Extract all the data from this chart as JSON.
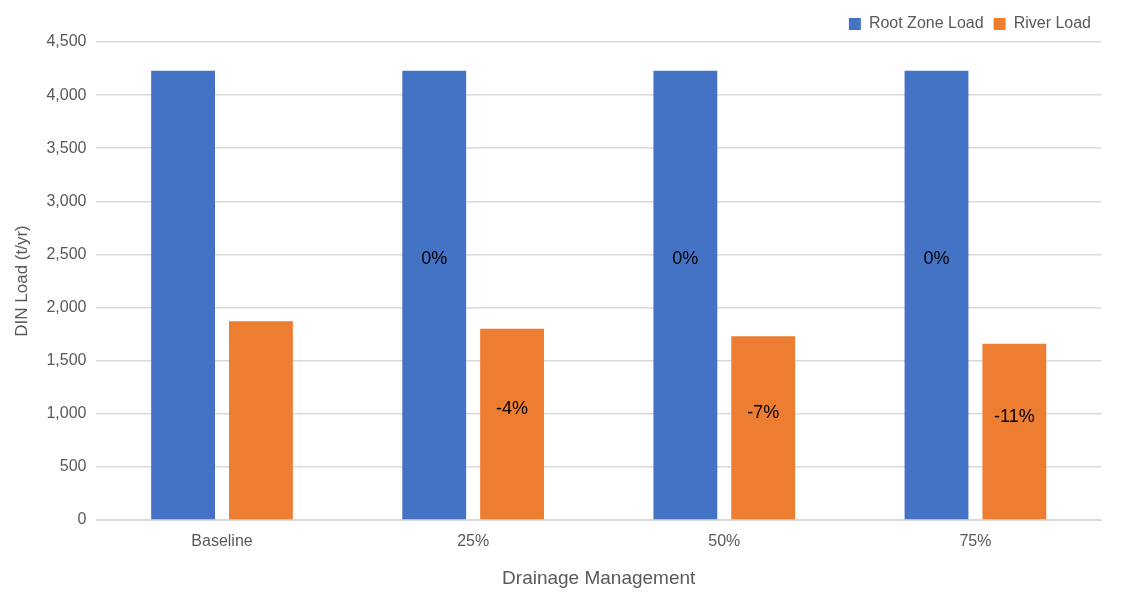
{
  "chart_data": {
    "type": "bar",
    "xlabel": "Drainage Management",
    "ylabel": "DIN Load (t/yr)",
    "categories": [
      "Baseline",
      "25%",
      "50%",
      "75%"
    ],
    "series": [
      {
        "name": "Root Zone Load",
        "color": "#4472c4",
        "values": [
          4230,
          4230,
          4230,
          4230
        ]
      },
      {
        "name": "River Load",
        "color": "#ed7d31",
        "values": [
          1870,
          1800,
          1730,
          1660
        ]
      }
    ],
    "annotations": [
      "0%",
      "0%",
      "0%",
      "-4%",
      "-7%",
      "-11%"
    ],
    "ylim": [
      0,
      4500
    ],
    "yticks": [
      0,
      500,
      {
        "value": 1000,
        "label": "1,000"
      },
      {
        "value": 1500,
        "label": "1,500"
      },
      {
        "value": 2000,
        "label": "2,000"
      },
      {
        "value": 2500,
        "label": "2,500"
      },
      {
        "value": 3000,
        "label": "3,000"
      },
      {
        "value": 3500,
        "label": "3,500"
      },
      {
        "value": 4000,
        "label": "4,000"
      },
      {
        "value": 4500,
        "label": "4,500"
      }
    ],
    "grid": "y",
    "legend": "top right"
  }
}
